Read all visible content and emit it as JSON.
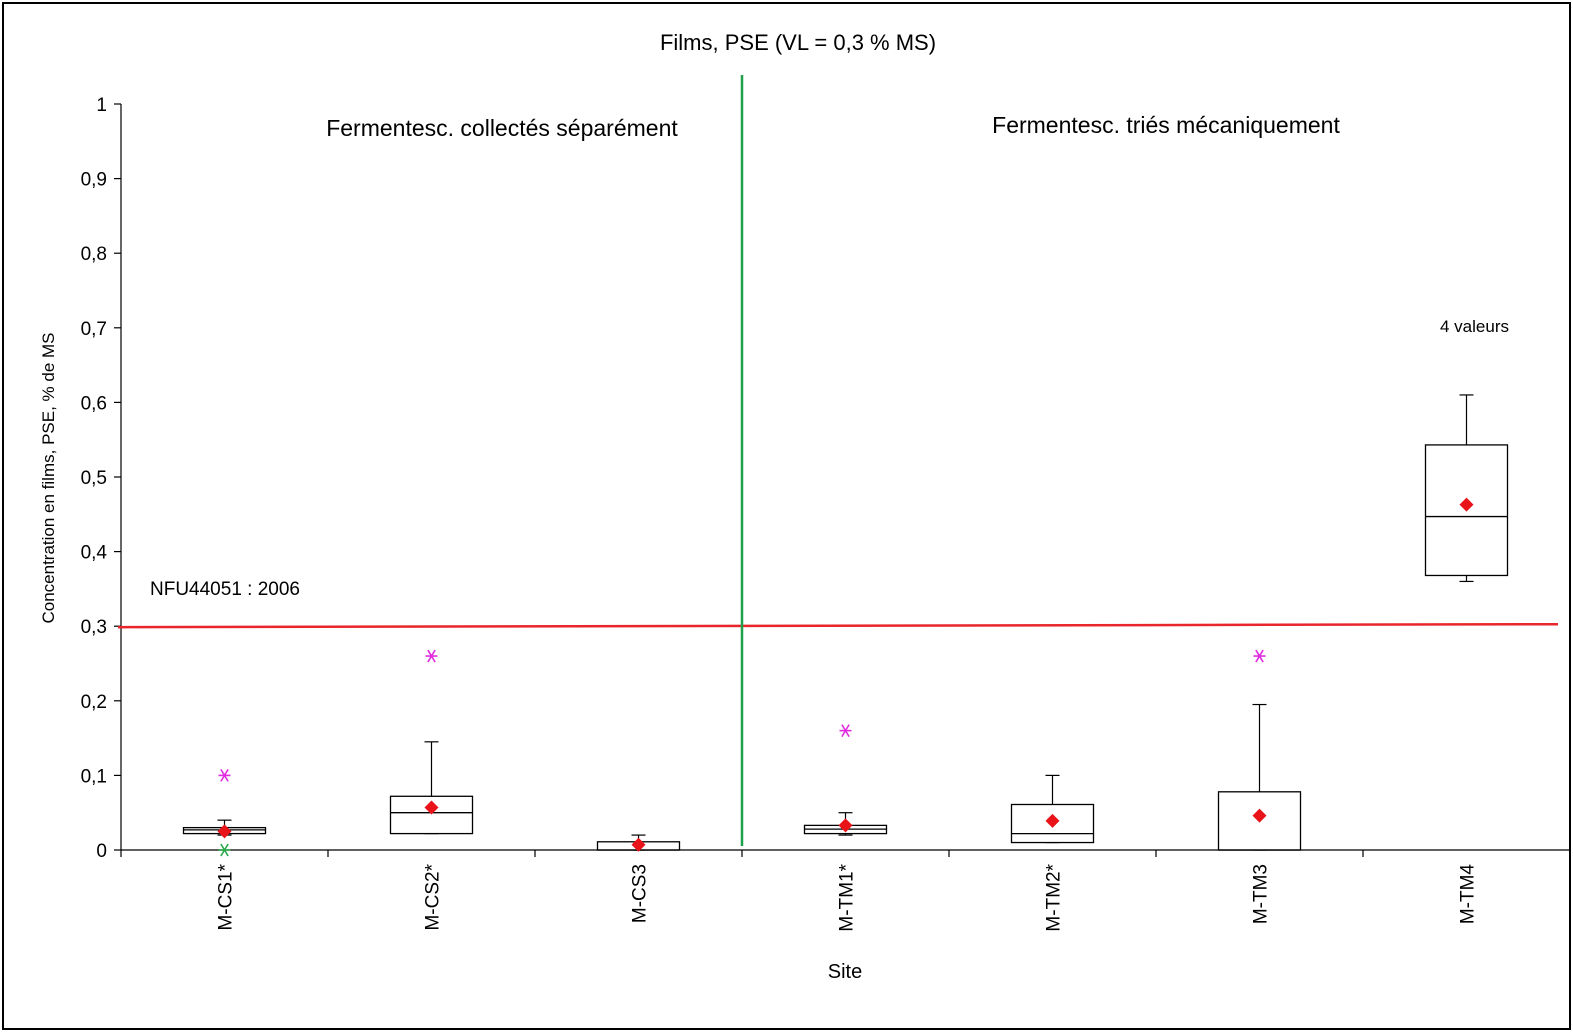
{
  "chart_data": {
    "type": "box",
    "title": "Films, PSE (VL = 0,3 % MS)",
    "xlabel": "Site",
    "ylabel": "Concentration en films, PSE, % de MS",
    "ylim": [
      0,
      1
    ],
    "yticks": [
      "0",
      "0,1",
      "0,2",
      "0,3",
      "0,4",
      "0,5",
      "0,6",
      "0,7",
      "0,8",
      "0,9",
      "1"
    ],
    "categories": [
      "M-CS1*",
      "M-CS2*",
      "M-CS3",
      "M-TM1*",
      "M-TM2*",
      "M-TM3",
      "M-TM4"
    ],
    "boxes": [
      {
        "site": "M-CS1*",
        "min": 0.02,
        "q1": 0.022,
        "median": 0.027,
        "q3": 0.03,
        "max": 0.04,
        "mean": 0.025,
        "outliers_high": [
          0.1
        ],
        "outliers_low": [
          0.0
        ]
      },
      {
        "site": "M-CS2*",
        "min": 0.022,
        "q1": 0.022,
        "median": 0.05,
        "q3": 0.072,
        "max": 0.145,
        "mean": 0.057,
        "outliers_high": [
          0.26
        ],
        "outliers_low": []
      },
      {
        "site": "M-CS3",
        "min": 0.0,
        "q1": 0.0,
        "median": 0.0,
        "q3": 0.011,
        "max": 0.02,
        "mean": 0.007,
        "outliers_high": [],
        "outliers_low": []
      },
      {
        "site": "M-TM1*",
        "min": 0.02,
        "q1": 0.022,
        "median": 0.028,
        "q3": 0.033,
        "max": 0.05,
        "mean": 0.033,
        "outliers_high": [
          0.16
        ],
        "outliers_low": []
      },
      {
        "site": "M-TM2*",
        "min": 0.01,
        "q1": 0.01,
        "median": 0.022,
        "q3": 0.061,
        "max": 0.1,
        "mean": 0.039,
        "outliers_high": [],
        "outliers_low": []
      },
      {
        "site": "M-TM3",
        "min": 0.0,
        "q1": 0.0,
        "median": 0.0,
        "q3": 0.078,
        "max": 0.195,
        "mean": 0.046,
        "outliers_high": [
          0.26
        ],
        "outliers_low": []
      },
      {
        "site": "M-TM4",
        "min": 0.36,
        "q1": 0.368,
        "median": 0.447,
        "q3": 0.543,
        "max": 0.61,
        "mean": 0.463,
        "outliers_high": [],
        "outliers_low": []
      }
    ],
    "reference_line": {
      "value": 0.3,
      "label": "NFU44051 : 2006",
      "color": "#e8262b"
    },
    "divider": {
      "between": [
        "M-CS3",
        "M-TM1*"
      ],
      "color": "#1fa04a"
    },
    "group_labels": [
      "Fermentesc. collectés séparément",
      "Fermentesc. triés mécaniquement"
    ],
    "annotations": [
      {
        "site": "M-TM4",
        "text": "4 valeurs"
      }
    ],
    "colors": {
      "mean": "#e8141a",
      "outlier_high": "#e02be0",
      "outlier_low": "#2aa84a",
      "box_stroke": "#000000"
    },
    "grid": false,
    "legend": "none"
  }
}
